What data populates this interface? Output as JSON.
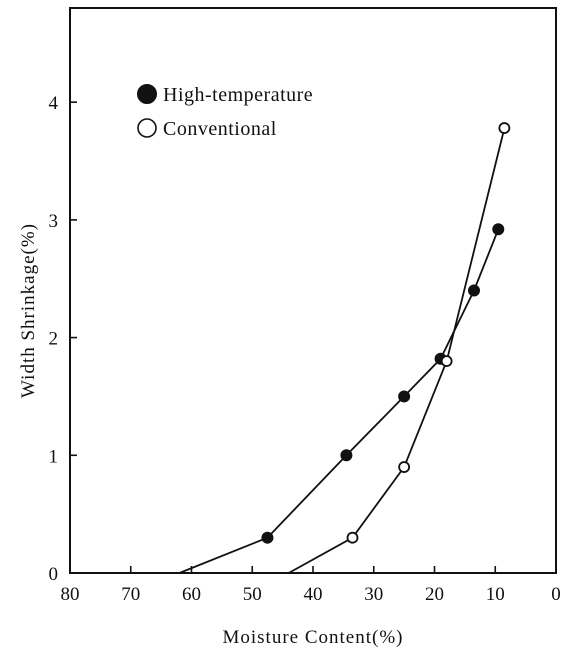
{
  "chart_data": {
    "type": "line",
    "xlabel": "Moisture Content(%)",
    "ylabel": "Width Shrinkage(%)",
    "xlim": [
      80,
      0
    ],
    "ylim": [
      0,
      4.8
    ],
    "x_ticks": [
      80,
      70,
      60,
      50,
      40,
      30,
      20,
      10,
      0
    ],
    "y_ticks": [
      0,
      1,
      2,
      3,
      4
    ],
    "x_tick_labels": [
      "80",
      "70",
      "60",
      "50",
      "40",
      "30",
      "20",
      "10",
      "0"
    ],
    "y_tick_labels": [
      "0",
      "1",
      "2",
      "3",
      "4"
    ],
    "grid": false,
    "legend_position": "top-left",
    "series": [
      {
        "name": "High-temperature",
        "marker": "filled-circle",
        "color": "#111111",
        "points": [
          [
            62,
            0
          ],
          [
            47.5,
            0.3
          ],
          [
            34.5,
            1.0
          ],
          [
            25,
            1.5
          ],
          [
            19,
            1.82
          ],
          [
            13.5,
            2.4
          ],
          [
            9.5,
            2.92
          ]
        ]
      },
      {
        "name": "Conventional",
        "marker": "open-circle",
        "color": "#111111",
        "points": [
          [
            44,
            0
          ],
          [
            33.5,
            0.3
          ],
          [
            25,
            0.9
          ],
          [
            18,
            1.8
          ],
          [
            8.5,
            3.78
          ]
        ]
      }
    ]
  }
}
